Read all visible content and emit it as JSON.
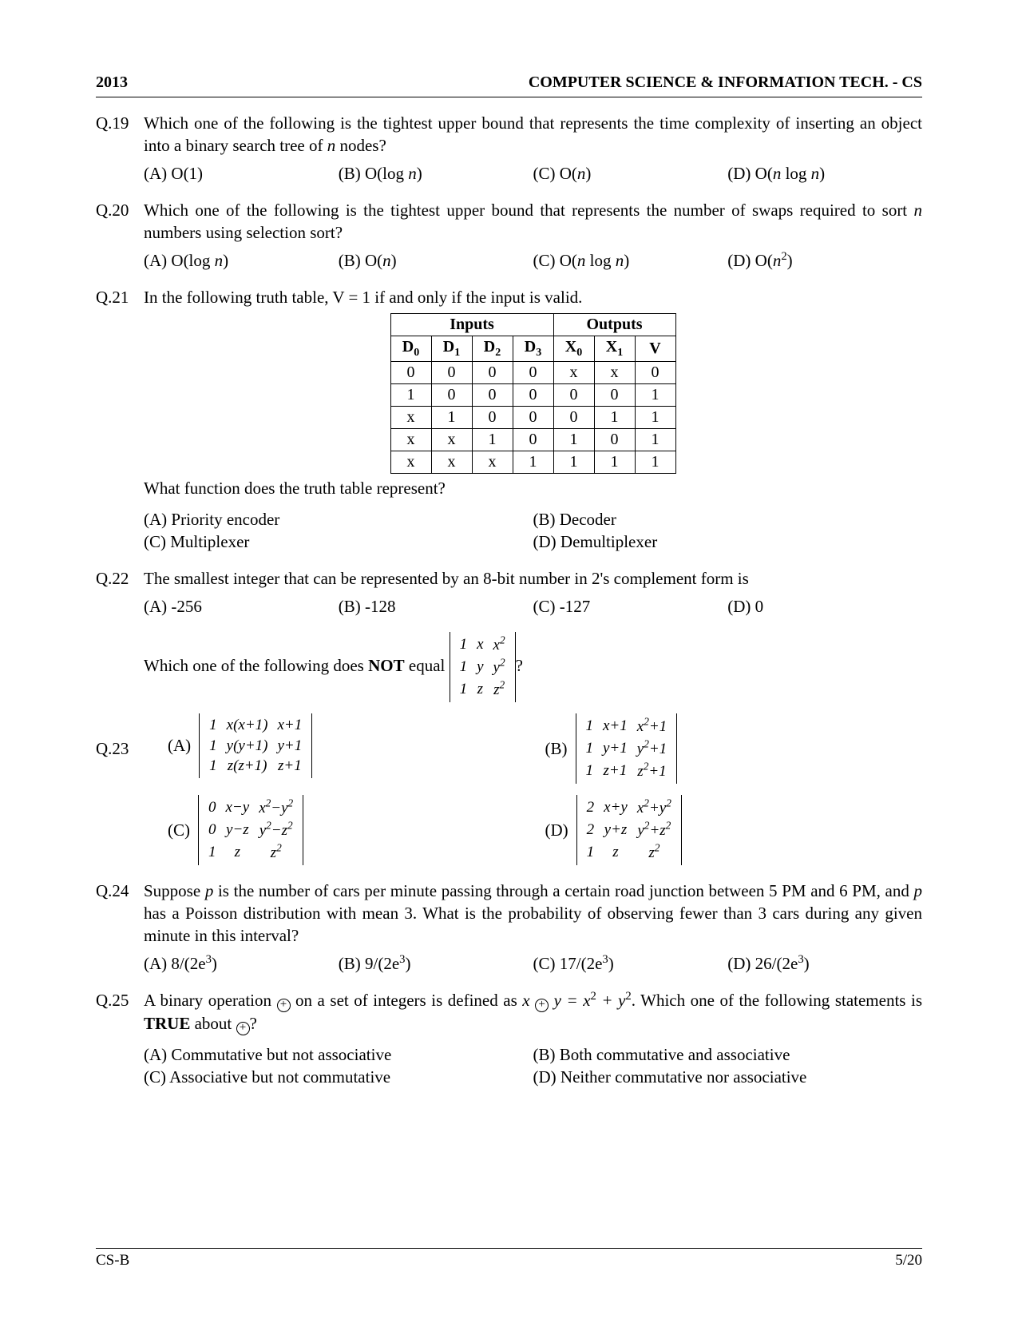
{
  "header": {
    "year": "2013",
    "subject": "COMPUTER SCIENCE & INFORMATION TECH.  -  CS"
  },
  "footer": {
    "left": "CS-B",
    "right": "5/20"
  },
  "q19": {
    "num": "Q.19",
    "text_a": "Which one of the following is the tightest upper bound that represents the time complexity of inserting an object into a binary search tree of ",
    "text_b": "n",
    "text_c": " nodes?",
    "A": "(A) O(1)",
    "B_a": "(B) O(log ",
    "B_b": "n",
    "B_c": ")",
    "C_a": "(C) O(",
    "C_b": "n",
    "C_c": ")",
    "D_a": "(D) O(",
    "D_b": "n",
    "D_c": " log ",
    "D_d": "n",
    "D_e": ")"
  },
  "q20": {
    "num": "Q.20",
    "text_a": "Which one of the following is the tightest upper bound that represents the number of swaps required to sort ",
    "text_b": "n",
    "text_c": " numbers using selection sort?",
    "A_a": "(A) O(log ",
    "A_b": "n",
    "A_c": ")",
    "B_a": "(B) O(",
    "B_b": "n",
    "B_c": ")",
    "C_a": "(C) O(",
    "C_b": "n",
    "C_c": " log ",
    "C_d": "n",
    "C_e": ")",
    "D_a": "(D)  O(",
    "D_b": "n",
    "D_c": ")",
    "D_sup": "2"
  },
  "q21": {
    "num": "Q.21",
    "text": "In the following truth table, V = 1 if and only if the input is valid.",
    "after": "What function does the truth table represent?",
    "table": {
      "inputs_label": "Inputs",
      "outputs_label": "Outputs",
      "cols": [
        "D",
        "D",
        "D",
        "D",
        "X",
        "X",
        "V"
      ],
      "subs": [
        "0",
        "1",
        "2",
        "3",
        "0",
        "1",
        ""
      ],
      "rows": [
        [
          "0",
          "0",
          "0",
          "0",
          "x",
          "x",
          "0"
        ],
        [
          "1",
          "0",
          "0",
          "0",
          "0",
          "0",
          "1"
        ],
        [
          "x",
          "1",
          "0",
          "0",
          "0",
          "1",
          "1"
        ],
        [
          "x",
          "x",
          "1",
          "0",
          "1",
          "0",
          "1"
        ],
        [
          "x",
          "x",
          "x",
          "1",
          "1",
          "1",
          "1"
        ]
      ]
    },
    "A": "(A) Priority encoder",
    "B": "(B) Decoder",
    "C": "(C) Multiplexer",
    "D": "(D) Demultiplexer"
  },
  "q22": {
    "num": "Q.22",
    "text": "The smallest integer that can be represented by an 8-bit number in 2's complement form is",
    "A": "(A) -256",
    "B": "(B) -128",
    "C": "(C) -127",
    "D": "(D) 0"
  },
  "q23": {
    "num": "Q.23",
    "text_a": "Which one of the following does ",
    "text_b": "NOT",
    "text_c": " equal ",
    "qmark": "?",
    "det0": [
      [
        "1",
        "x",
        "x²"
      ],
      [
        "1",
        "y",
        "y²"
      ],
      [
        "1",
        "z",
        "z²"
      ]
    ],
    "A_lbl": "(A)",
    "B_lbl": "(B)",
    "C_lbl": "(C)",
    "D_lbl": "(D)",
    "detA": [
      [
        "1",
        "x(x+1)",
        "x+1"
      ],
      [
        "1",
        "y(y+1)",
        "y+1"
      ],
      [
        "1",
        "z(z+1)",
        "z+1"
      ]
    ],
    "detB": [
      [
        "1",
        "x+1",
        "x²+1"
      ],
      [
        "1",
        "y+1",
        "y²+1"
      ],
      [
        "1",
        "z+1",
        "z²+1"
      ]
    ],
    "detC": [
      [
        "0",
        "x−y",
        "x²−y²"
      ],
      [
        "0",
        "y−z",
        "y²−z²"
      ],
      [
        "1",
        "z",
        "z²"
      ]
    ],
    "detD": [
      [
        "2",
        "x+y",
        "x²+y²"
      ],
      [
        "2",
        "y+z",
        "y²+z²"
      ],
      [
        "1",
        "z",
        "z²"
      ]
    ]
  },
  "q24": {
    "num": "Q.24",
    "text_a": "Suppose ",
    "text_p1": "p",
    "text_b": " is the number of cars per minute passing through a certain road junction between 5 PM and 6 PM, and ",
    "text_p2": "p",
    "text_c": " has a Poisson distribution with mean 3. What is the probability of observing fewer than 3 cars during any given minute in this interval?",
    "A_a": "(A) 8/(2e",
    "A_b": ")",
    "B_a": "(B) 9/(2e",
    "B_b": ")",
    "C_a": "(C)  17/(2e",
    "C_b": ")",
    "D_a": "(D)  26/(2e",
    "D_b": ")",
    "sup": "3"
  },
  "q25": {
    "num": "Q.25",
    "t1": "A binary operation ",
    "t2": " on a set of integers is defined as  ",
    "expr_a": "x",
    "expr_b": " y = x",
    "expr_c": "  +  y",
    "sup": "2",
    "t3": ". Which one of the following statements is ",
    "t4": "TRUE",
    "t5": " about ",
    "t6": "?",
    "A": "(A) Commutative but not associative",
    "B": "(B) Both commutative and associative",
    "C": "(C) Associative but not commutative",
    "D": "(D) Neither commutative nor associative"
  }
}
